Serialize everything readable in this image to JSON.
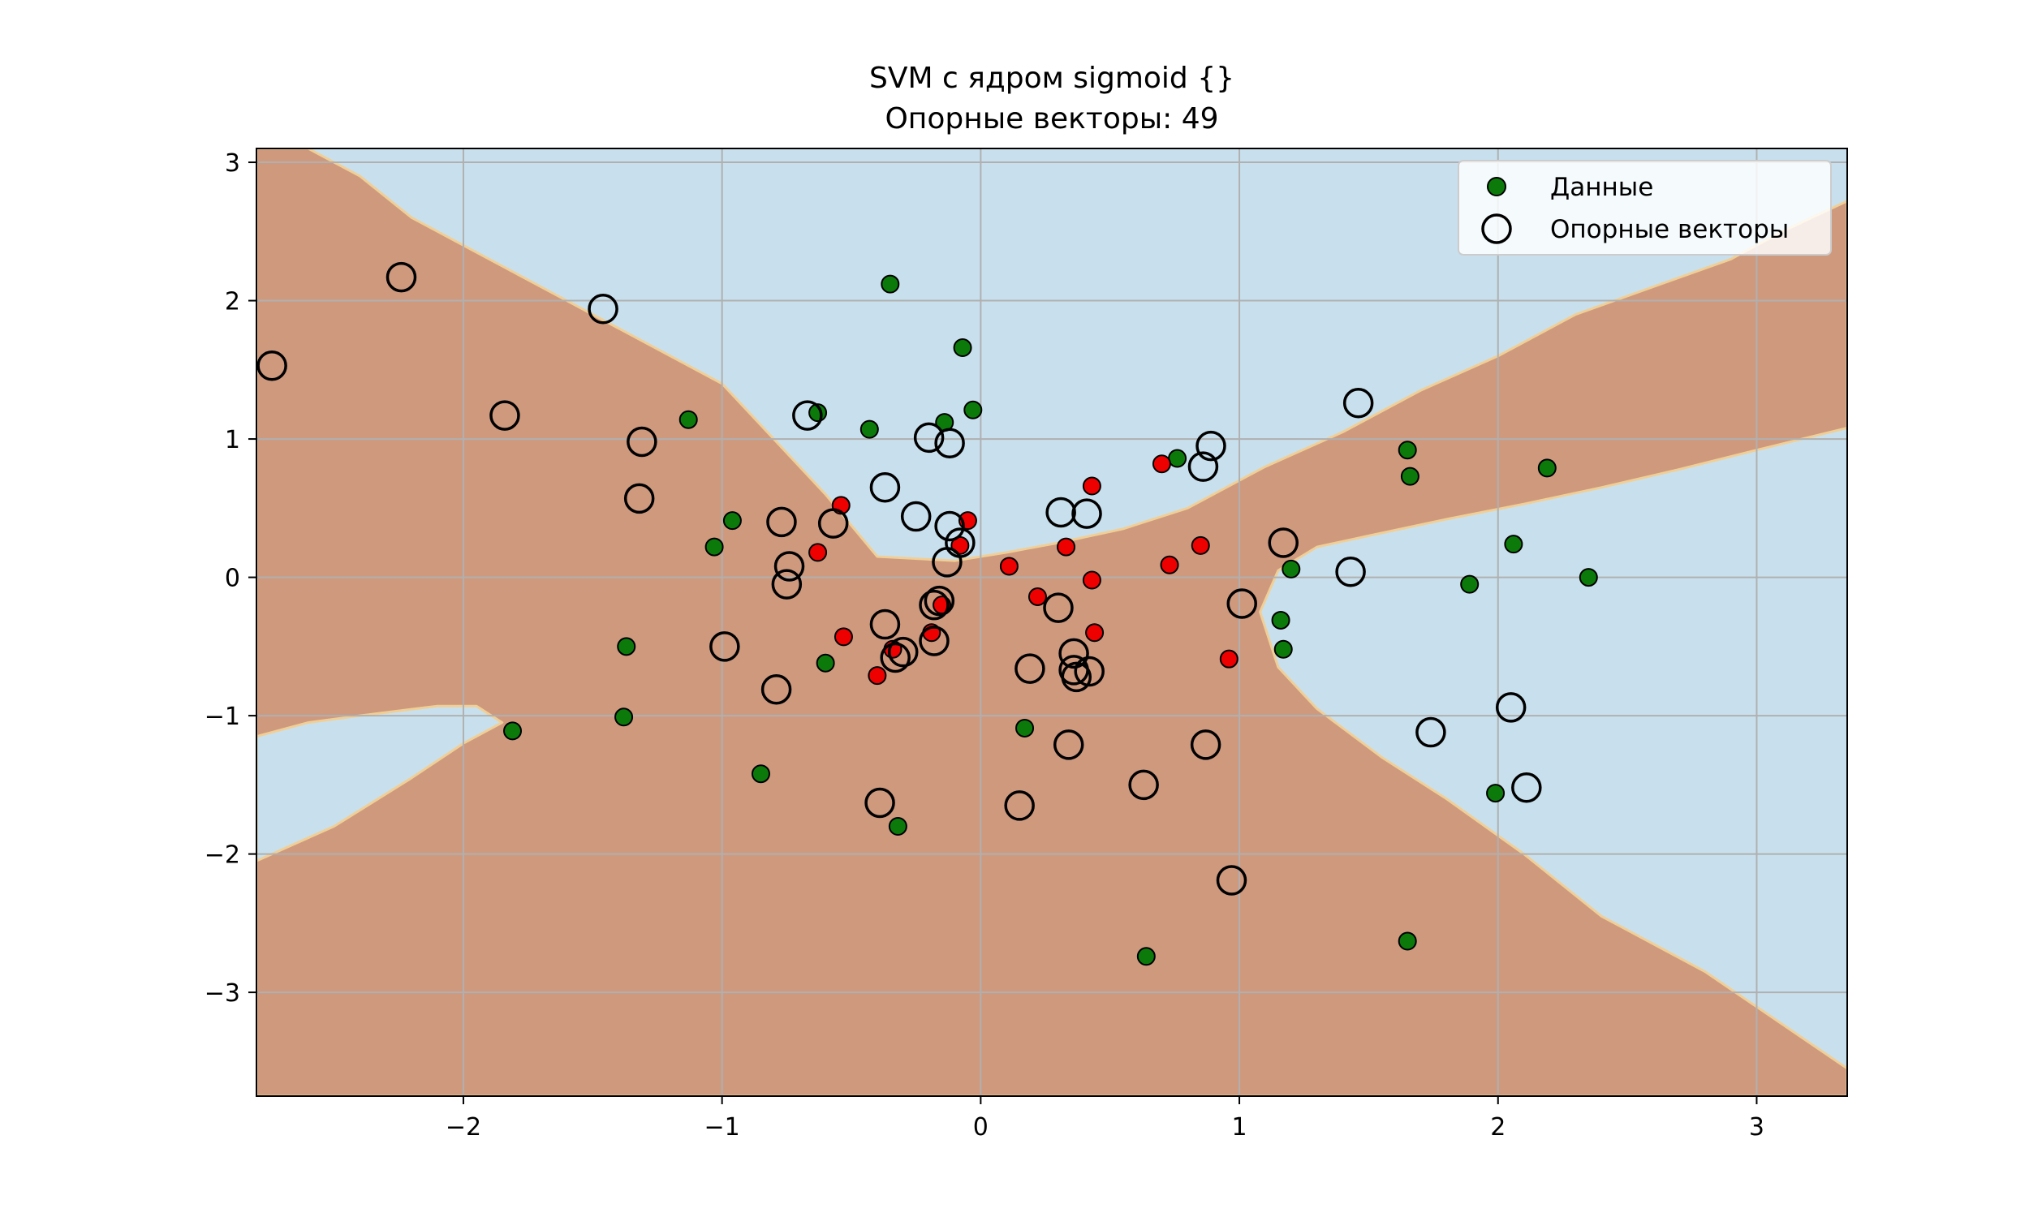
{
  "chart_data": {
    "type": "scatter",
    "title": "SVM с ядром sigmoid {}",
    "subtitle": "Опорные векторы: 49",
    "xlabel": "",
    "ylabel": "",
    "xlim": [
      -2.8,
      3.35
    ],
    "ylim": [
      -3.75,
      3.1
    ],
    "xticks": [
      -2,
      -1,
      0,
      1,
      2,
      3
    ],
    "yticks": [
      3,
      2,
      1,
      0,
      -1,
      -2,
      -3
    ],
    "grid": true,
    "legend": {
      "placement": "top-right",
      "entries": [
        "Данные",
        "Опорные векторы"
      ]
    },
    "colors": {
      "region_positive": "#c8e0ed",
      "region_negative": "#cf997e",
      "boundary_edge": "#f0cf97",
      "class_a": "#0b7a0b",
      "class_b": "#ee0000",
      "support_ring": "#000000",
      "grid": "#b0b0b0"
    },
    "decision_regions": {
      "negative_band_top": [
        [
          -2.8,
          3.1
        ],
        [
          -2.6,
          3.1
        ],
        [
          -2.4,
          2.9
        ],
        [
          -2.2,
          2.6
        ],
        [
          -1.9,
          2.3
        ],
        [
          -1.6,
          2.0
        ],
        [
          -1.3,
          1.7
        ],
        [
          -1.0,
          1.4
        ],
        [
          -0.8,
          1.0
        ],
        [
          -0.6,
          0.6
        ],
        [
          -0.4,
          0.15
        ],
        [
          -0.1,
          0.12
        ],
        [
          0.1,
          0.18
        ],
        [
          0.3,
          0.25
        ],
        [
          0.55,
          0.35
        ],
        [
          0.8,
          0.5
        ],
        [
          1.1,
          0.8
        ],
        [
          1.4,
          1.05
        ],
        [
          1.7,
          1.35
        ],
        [
          2.0,
          1.6
        ],
        [
          2.3,
          1.9
        ],
        [
          2.6,
          2.1
        ],
        [
          2.9,
          2.3
        ],
        [
          3.1,
          2.5
        ],
        [
          3.35,
          2.72
        ]
      ],
      "negative_band_bottom_right": [
        [
          3.35,
          1.08
        ],
        [
          3.0,
          0.92
        ],
        [
          2.7,
          0.78
        ],
        [
          2.4,
          0.65
        ],
        [
          2.1,
          0.53
        ],
        [
          1.8,
          0.42
        ],
        [
          1.5,
          0.3
        ],
        [
          1.3,
          0.22
        ],
        [
          1.15,
          0.05
        ],
        [
          1.08,
          -0.25
        ],
        [
          1.15,
          -0.65
        ],
        [
          1.3,
          -0.95
        ],
        [
          1.55,
          -1.3
        ],
        [
          1.8,
          -1.6
        ],
        [
          2.1,
          -2.0
        ],
        [
          2.4,
          -2.45
        ],
        [
          2.8,
          -2.85
        ],
        [
          3.35,
          -3.55
        ]
      ],
      "left_blue_island": [
        [
          -2.8,
          -1.15
        ],
        [
          -2.6,
          -1.05
        ],
        [
          -2.4,
          -1.0
        ],
        [
          -2.1,
          -0.93
        ],
        [
          -1.95,
          -0.93
        ],
        [
          -1.85,
          -1.05
        ],
        [
          -2.0,
          -1.2
        ],
        [
          -2.2,
          -1.45
        ],
        [
          -2.5,
          -1.8
        ],
        [
          -2.8,
          -2.05
        ]
      ]
    },
    "series": [
      {
        "name": "Данные",
        "points": [
          [
            -0.35,
            2.12
          ],
          [
            -0.07,
            1.66
          ],
          [
            -0.63,
            1.19
          ],
          [
            -0.43,
            1.07
          ],
          [
            -0.14,
            1.12
          ],
          [
            -0.03,
            1.21
          ],
          [
            -1.13,
            1.14
          ],
          [
            -0.96,
            0.41
          ],
          [
            -1.03,
            0.22
          ],
          [
            -1.37,
            -0.5
          ],
          [
            -1.38,
            -1.01
          ],
          [
            -1.81,
            -1.11
          ],
          [
            -0.85,
            -1.42
          ],
          [
            -0.32,
            -1.8
          ],
          [
            -0.6,
            -0.62
          ],
          [
            0.17,
            -1.09
          ],
          [
            0.64,
            -2.74
          ],
          [
            0.76,
            0.86
          ],
          [
            1.2,
            0.06
          ],
          [
            1.16,
            -0.31
          ],
          [
            1.17,
            -0.52
          ],
          [
            1.65,
            0.92
          ],
          [
            1.66,
            0.73
          ],
          [
            2.19,
            0.79
          ],
          [
            2.06,
            0.24
          ],
          [
            1.89,
            -0.05
          ],
          [
            2.35,
            0.0
          ],
          [
            1.99,
            -1.56
          ],
          [
            1.65,
            -2.63
          ]
        ]
      },
      {
        "name": "",
        "points": [
          [
            -0.54,
            0.52
          ],
          [
            -0.63,
            0.18
          ],
          [
            -0.05,
            0.41
          ],
          [
            -0.08,
            0.23
          ],
          [
            0.11,
            0.08
          ],
          [
            0.33,
            0.22
          ],
          [
            0.43,
            0.66
          ],
          [
            0.7,
            0.82
          ],
          [
            0.73,
            0.09
          ],
          [
            0.85,
            0.23
          ],
          [
            0.43,
            -0.02
          ],
          [
            0.22,
            -0.14
          ],
          [
            -0.15,
            -0.2
          ],
          [
            -0.19,
            -0.4
          ],
          [
            -0.34,
            -0.52
          ],
          [
            -0.53,
            -0.43
          ],
          [
            -0.4,
            -0.71
          ],
          [
            0.44,
            -0.4
          ],
          [
            0.96,
            -0.59
          ]
        ]
      },
      {
        "name": "Опорные векторы",
        "points": [
          [
            -2.74,
            1.53
          ],
          [
            -2.24,
            2.17
          ],
          [
            -1.84,
            1.17
          ],
          [
            -1.46,
            1.94
          ],
          [
            -1.31,
            0.98
          ],
          [
            -1.32,
            0.57
          ],
          [
            -0.77,
            0.4
          ],
          [
            -0.74,
            0.08
          ],
          [
            -0.75,
            -0.05
          ],
          [
            -0.79,
            -0.81
          ],
          [
            -0.99,
            -0.5
          ],
          [
            -0.67,
            1.17
          ],
          [
            -0.57,
            0.39
          ],
          [
            -0.37,
            0.65
          ],
          [
            -0.25,
            0.44
          ],
          [
            -0.2,
            1.01
          ],
          [
            -0.12,
            0.97
          ],
          [
            -0.12,
            0.37
          ],
          [
            -0.08,
            0.25
          ],
          [
            -0.13,
            0.11
          ],
          [
            -0.16,
            -0.17
          ],
          [
            -0.18,
            -0.2
          ],
          [
            -0.18,
            -0.46
          ],
          [
            -0.3,
            -0.54
          ],
          [
            -0.33,
            -0.58
          ],
          [
            -0.37,
            -0.34
          ],
          [
            -0.39,
            -1.63
          ],
          [
            0.15,
            -1.65
          ],
          [
            0.19,
            -0.66
          ],
          [
            0.3,
            -0.22
          ],
          [
            0.31,
            0.47
          ],
          [
            0.41,
            0.46
          ],
          [
            0.36,
            -0.55
          ],
          [
            0.36,
            -0.67
          ],
          [
            0.37,
            -0.72
          ],
          [
            0.42,
            -0.68
          ],
          [
            0.34,
            -1.21
          ],
          [
            0.63,
            -1.5
          ],
          [
            0.86,
            0.8
          ],
          [
            0.89,
            0.95
          ],
          [
            0.87,
            -1.21
          ],
          [
            0.97,
            -2.19
          ],
          [
            1.01,
            -0.19
          ],
          [
            1.17,
            0.25
          ],
          [
            1.43,
            0.04
          ],
          [
            1.46,
            1.26
          ],
          [
            1.74,
            -1.12
          ],
          [
            2.05,
            -0.94
          ],
          [
            2.11,
            -1.52
          ]
        ]
      }
    ]
  }
}
